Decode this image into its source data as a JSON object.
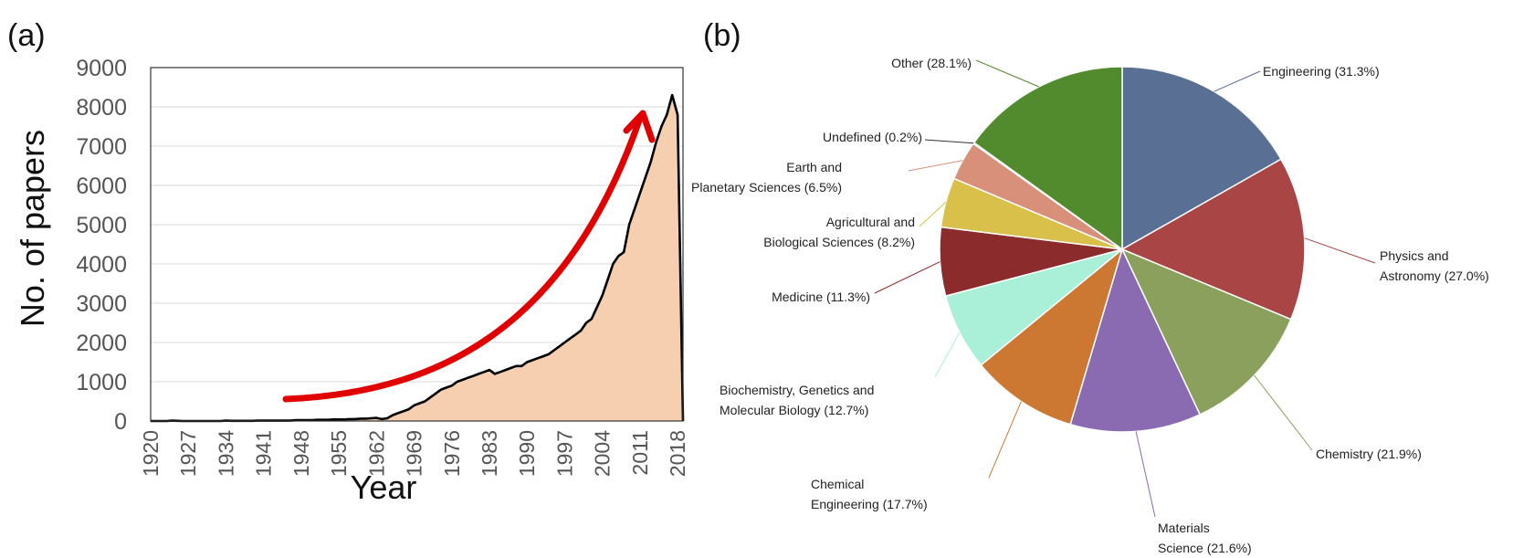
{
  "chart_data": [
    {
      "panel": "(a)",
      "type": "area",
      "xlabel": "Year",
      "ylabel": "No. of papers",
      "xlim": [
        1920,
        2019
      ],
      "ylim": [
        0,
        9000
      ],
      "yticks": [
        0,
        1000,
        2000,
        3000,
        4000,
        5000,
        6000,
        7000,
        8000,
        9000
      ],
      "xtick_labels": [
        "1920",
        "1927",
        "1934",
        "1941",
        "1948",
        "1955",
        "1962",
        "1969",
        "1976",
        "1983",
        "1990",
        "1997",
        "2004",
        "2011",
        "2018"
      ],
      "series": [
        {
          "name": "No. of papers",
          "x": [
            1920,
            1921,
            1922,
            1923,
            1924,
            1925,
            1926,
            1927,
            1928,
            1929,
            1930,
            1931,
            1932,
            1933,
            1934,
            1935,
            1936,
            1937,
            1938,
            1939,
            1940,
            1941,
            1942,
            1943,
            1944,
            1945,
            1946,
            1947,
            1948,
            1949,
            1950,
            1951,
            1952,
            1953,
            1954,
            1955,
            1956,
            1957,
            1958,
            1959,
            1960,
            1961,
            1962,
            1963,
            1964,
            1965,
            1966,
            1967,
            1968,
            1969,
            1970,
            1971,
            1972,
            1973,
            1974,
            1975,
            1976,
            1977,
            1978,
            1979,
            1980,
            1981,
            1982,
            1983,
            1984,
            1985,
            1986,
            1987,
            1988,
            1989,
            1990,
            1991,
            1992,
            1993,
            1994,
            1995,
            1996,
            1997,
            1998,
            1999,
            2000,
            2001,
            2002,
            2003,
            2004,
            2005,
            2006,
            2007,
            2008,
            2009,
            2010,
            2011,
            2012,
            2013,
            2014,
            2015,
            2016,
            2017,
            2018,
            2019
          ],
          "values": [
            0,
            0,
            0,
            0,
            10,
            5,
            0,
            0,
            0,
            0,
            0,
            0,
            0,
            0,
            10,
            5,
            5,
            5,
            5,
            5,
            10,
            10,
            10,
            10,
            10,
            10,
            10,
            20,
            20,
            20,
            20,
            30,
            30,
            30,
            40,
            40,
            40,
            50,
            50,
            60,
            60,
            70,
            80,
            50,
            70,
            150,
            200,
            250,
            300,
            400,
            450,
            500,
            600,
            700,
            800,
            850,
            900,
            1000,
            1050,
            1100,
            1150,
            1200,
            1250,
            1300,
            1200,
            1250,
            1300,
            1350,
            1400,
            1400,
            1500,
            1550,
            1600,
            1650,
            1700,
            1800,
            1900,
            2000,
            2100,
            2200,
            2300,
            2500,
            2600,
            2900,
            3200,
            3600,
            4000,
            4200,
            4300,
            5000,
            5400,
            5800,
            6200,
            6600,
            7100,
            7500,
            7800,
            8300,
            7800,
            0
          ]
        }
      ],
      "annotation": "trend-arrow"
    },
    {
      "panel": "(b)",
      "type": "pie",
      "slices": [
        {
          "label": "Engineering (31.3%)",
          "value": 31.3,
          "color": "#5a6f94"
        },
        {
          "label": "Physics and Astronomy (27.0%)",
          "value": 27.0,
          "color": "#aa4545"
        },
        {
          "label": "Chemistry (21.9%)",
          "value": 21.9,
          "color": "#8aa05c"
        },
        {
          "label": "Materials Science (21.6%)",
          "value": 21.6,
          "color": "#8a6ab0"
        },
        {
          "label": "Chemical Engineering (17.7%)",
          "value": 17.7,
          "color": "#cc7833"
        },
        {
          "label": "Biochemistry, Genetics and Molecular Biology (12.7%)",
          "value": 12.7,
          "color": "#aaefd8"
        },
        {
          "label": "Medicine (11.3%)",
          "value": 11.3,
          "color": "#8b2b2b"
        },
        {
          "label": "Agricultural and Biological Sciences (8.2%)",
          "value": 8.2,
          "color": "#d9c04a"
        },
        {
          "label": "Earth and Planetary Sciences (6.5%)",
          "value": 6.5,
          "color": "#d8907a"
        },
        {
          "label": "Undefined (0.2%)",
          "value": 0.2,
          "color": "#333333"
        },
        {
          "label": "Other (28.1%)",
          "value": 28.1,
          "color": "#528b2e"
        }
      ]
    }
  ],
  "colors": {
    "area_fill": "#f5cfb0",
    "area_line": "#000000",
    "arrow": "#e00000",
    "grid": "#d9d9d9"
  }
}
